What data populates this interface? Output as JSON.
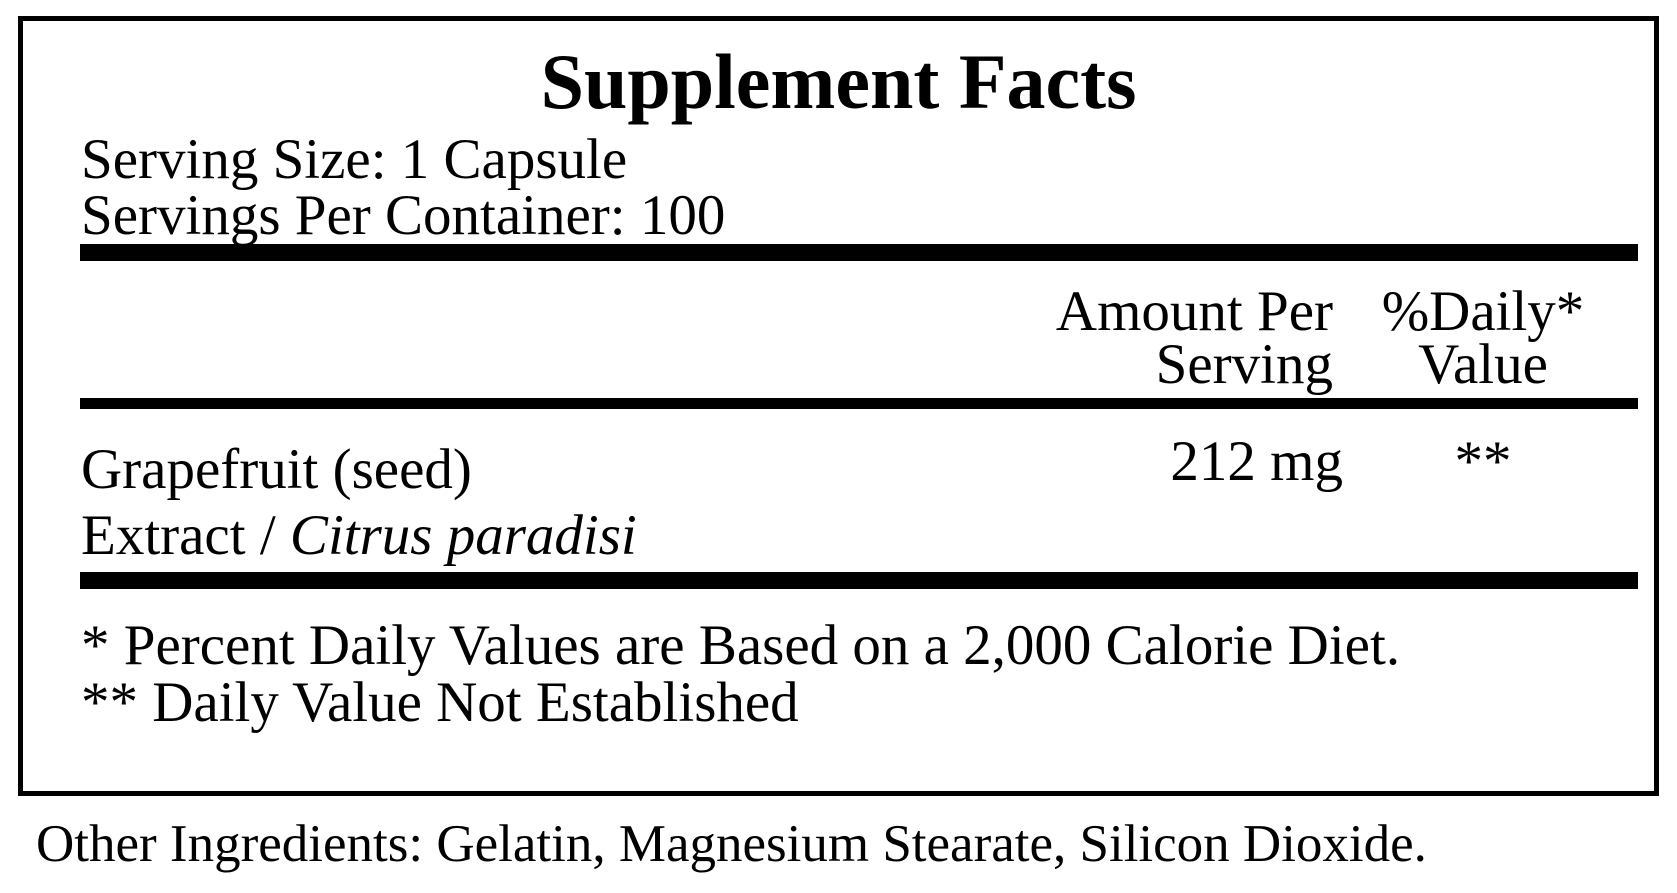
{
  "panel": {
    "title": "Supplement Facts",
    "serving_size": "Serving Size: 1 Capsule",
    "servings_per_container": "Servings Per Container: 100",
    "headers": {
      "amount_line1": "Amount Per",
      "amount_line2": "Serving",
      "daily_line1": "%Daily*",
      "daily_line2": "Value"
    },
    "ingredient": {
      "name": "Grapefruit (seed)",
      "form": "Extract",
      "separator": " / ",
      "latin": "Citrus paradisi",
      "amount": "212 mg",
      "daily_value": "**"
    },
    "footnotes": [
      "* Percent Daily Values are Based on a 2,000 Calorie Diet.",
      "** Daily Value Not Established"
    ]
  },
  "other_ingredients": "Other Ingredients: Gelatin, Magnesium Stearate, Silicon Dioxide.",
  "colors": {
    "text": "#000000",
    "background": "#ffffff",
    "rules": "#000000"
  }
}
